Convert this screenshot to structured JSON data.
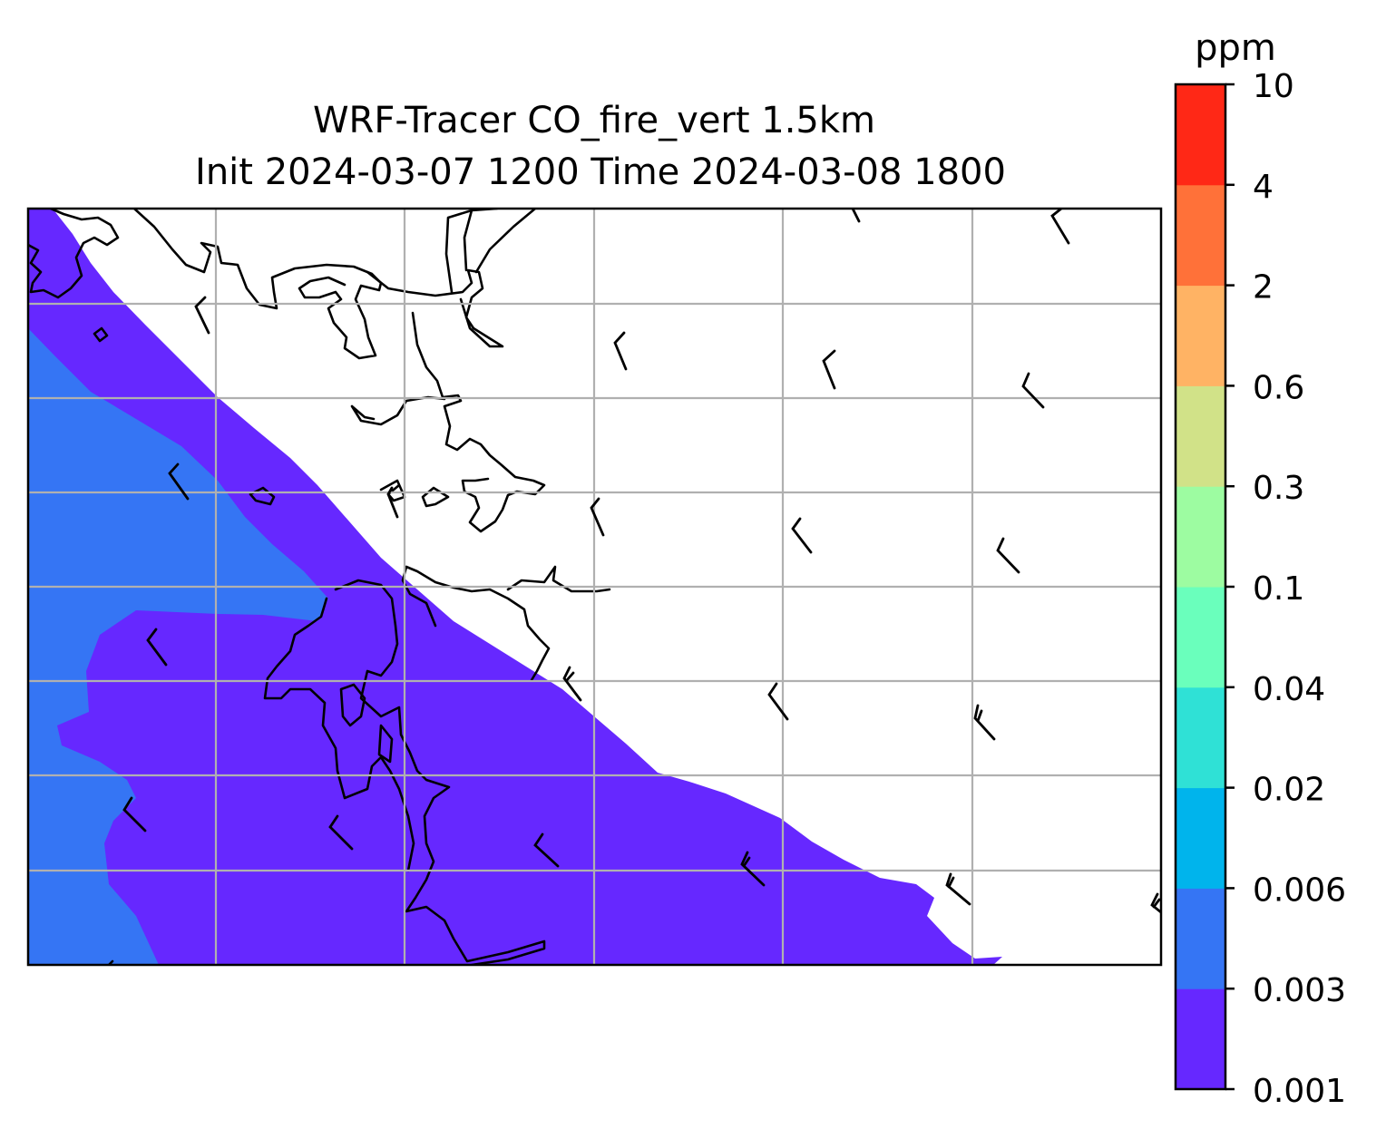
{
  "figure": {
    "title_line1": "WRF-Tracer CO_fire_vert 1.5km",
    "title_line2": "Init 2024-03-07 1200 Time 2024-03-08 1800"
  },
  "colorbar": {
    "unit_label": "ppm",
    "tick_labels": [
      "0.001",
      "0.003",
      "0.006",
      "0.02",
      "0.04",
      "0.1",
      "0.3",
      "0.6",
      "2",
      "4",
      "10"
    ],
    "level_colors": [
      "#6628ff",
      "#3575f4",
      "#00b4ec",
      "#2fe1d6",
      "#6affbc",
      "#9dfca1",
      "#d1e288",
      "#ffb364",
      "#ff7139",
      "#ff2816"
    ]
  },
  "map": {
    "background_color": "#ffffff",
    "coastline_color": "#000000",
    "gridline_color": "#b0b0b0",
    "barb_color": "#000000",
    "field_levels_present": [
      "0.001",
      "0.003"
    ]
  }
}
